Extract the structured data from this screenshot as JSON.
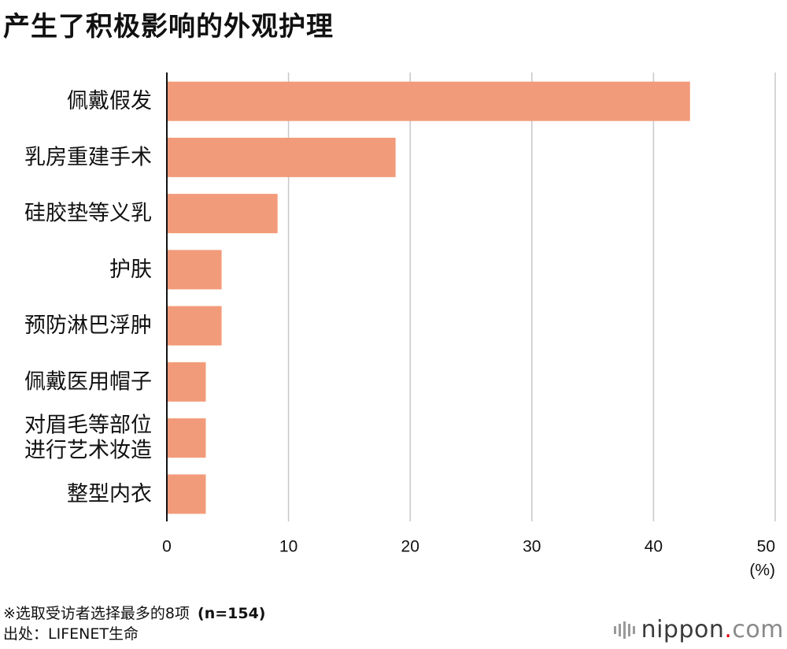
{
  "title": "产生了积极影响的外观护理",
  "chart_data": {
    "type": "bar",
    "orientation": "horizontal",
    "title": "产生了积极影响的外观护理",
    "categories": [
      [
        "佩戴假发"
      ],
      [
        "乳房重建手术"
      ],
      [
        "硅胶垫等义乳"
      ],
      [
        "护肤"
      ],
      [
        "预防淋巴浮肿"
      ],
      [
        "佩戴医用帽子"
      ],
      [
        "对眉毛等部位",
        "进行艺术妆造"
      ],
      [
        "整型内衣"
      ]
    ],
    "values": [
      43,
      18.8,
      9.1,
      4.5,
      4.5,
      3.2,
      3.2,
      3.2
    ],
    "xlim": [
      0,
      50
    ],
    "xticks": [
      "0",
      "10",
      "20",
      "30",
      "40",
      "50"
    ],
    "xunit": "(%)",
    "grid": true,
    "bar_color": "#f29b7a"
  },
  "footnote": {
    "note": "※选取受访者选择最多的8项",
    "sample": "(n=154)",
    "source": "出处：LIFENET生命"
  },
  "brand": {
    "name": "nippon",
    "dot": ".",
    "suffix": "com"
  }
}
